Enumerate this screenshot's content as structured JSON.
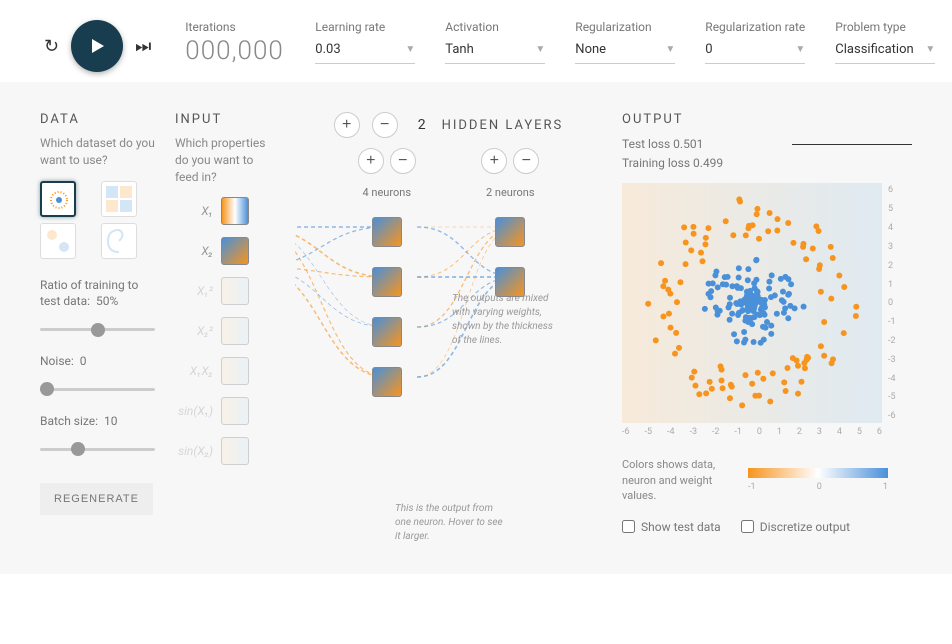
{
  "topbar": {
    "iterations_label": "Iterations",
    "iterations_value": "000,000",
    "learning_rate_label": "Learning rate",
    "learning_rate_value": "0.03",
    "activation_label": "Activation",
    "activation_value": "Tanh",
    "regularization_label": "Regularization",
    "regularization_value": "None",
    "regularization_rate_label": "Regularization rate",
    "regularization_rate_value": "0",
    "problem_type_label": "Problem type",
    "problem_type_value": "Classification"
  },
  "data_panel": {
    "title": "DATA",
    "subtitle": "Which dataset do you want to use?",
    "datasets": [
      {
        "id": "circle",
        "selected": true
      },
      {
        "id": "xor",
        "selected": false
      },
      {
        "id": "gauss",
        "selected": false
      },
      {
        "id": "spiral",
        "selected": false
      }
    ],
    "ratio_label": "Ratio of training to test data:",
    "ratio_value": "50%",
    "ratio_slider": 50,
    "noise_label": "Noise:",
    "noise_value": "0",
    "noise_slider": 0,
    "batch_label": "Batch size:",
    "batch_value": "10",
    "batch_slider": 10,
    "regenerate_label": "REGENERATE"
  },
  "input_panel": {
    "title": "INPUT",
    "subtitle": "Which properties do you want to feed in?",
    "features": [
      {
        "label": "X₁",
        "enabled": true,
        "gradient": "grad-orange-blue"
      },
      {
        "label": "X₂",
        "enabled": true,
        "gradient": "grad-blue-orange"
      },
      {
        "label": "X₁²",
        "enabled": false,
        "gradient": "grad-pale"
      },
      {
        "label": "X₂²",
        "enabled": false,
        "gradient": "grad-pale"
      },
      {
        "label": "X₁X₂",
        "enabled": false,
        "gradient": "grad-pale"
      },
      {
        "label": "sin(X₁)",
        "enabled": false,
        "gradient": "grad-pale"
      },
      {
        "label": "sin(X₂)",
        "enabled": false,
        "gradient": "grad-pale"
      }
    ]
  },
  "network": {
    "hidden_count": "2",
    "hidden_label": "HIDDEN LAYERS",
    "layers": [
      {
        "neurons": 4,
        "label": "4 neurons"
      },
      {
        "neurons": 2,
        "label": "2 neurons"
      }
    ],
    "annotation_neuron": "This is the output from one neuron. Hover to see it larger.",
    "annotation_weights": "The outputs are mixed with varying weights, shown by the thickness of the lines.",
    "edges": {
      "colors": {
        "positive": "#4a90d9",
        "negative": "#f7941e"
      },
      "style": "dashed",
      "thickness_range": [
        0.5,
        2.5
      ]
    }
  },
  "output": {
    "title": "OUTPUT",
    "test_loss_label": "Test loss",
    "test_loss_value": "0.501",
    "train_loss_label": "Training loss",
    "train_loss_value": "0.499",
    "plot": {
      "xlim": [
        -6,
        6
      ],
      "ylim": [
        -6,
        6
      ],
      "xticks": [
        -6,
        -5,
        -4,
        -3,
        -2,
        -1,
        0,
        1,
        2,
        3,
        4,
        5,
        6
      ],
      "yticks": [
        -6,
        -5,
        -4,
        -3,
        -2,
        -1,
        0,
        1,
        2,
        3,
        4,
        5,
        6
      ],
      "point_colors": {
        "class0": "#f7941e",
        "class1": "#4a90d9"
      },
      "point_radius": 3,
      "background_gradient": [
        "#f7941e",
        "#ffffff",
        "#4a90d9"
      ]
    },
    "colormap_text": "Colors shows data, neuron and weight values.",
    "colormap_labels": [
      "-1",
      "0",
      "1"
    ],
    "show_test_label": "Show test data",
    "discretize_label": "Discretize output",
    "show_test_checked": false,
    "discretize_checked": false
  },
  "colors": {
    "play_bg": "#183d4e",
    "orange": "#f7941e",
    "blue": "#4a90d9",
    "panel_bg": "#f7f7f7",
    "text_muted": "#777777",
    "text_light": "#999999"
  }
}
